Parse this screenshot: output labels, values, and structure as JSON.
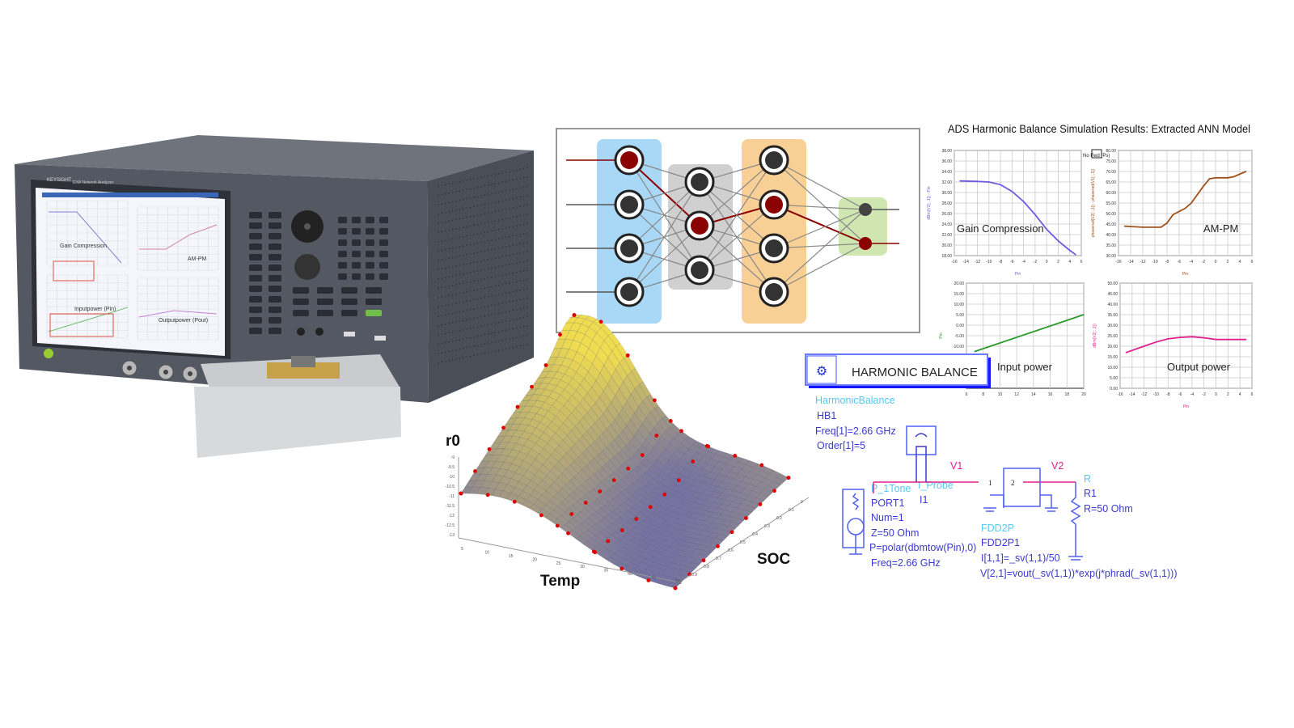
{
  "instrument": {
    "brand": "KEYSIGHT",
    "model": "ENA Network Analyzer",
    "screen_labels": [
      "Gain Compression",
      "AM-PM",
      "Inputpower (Pin)",
      "Outputpower (Pout)"
    ]
  },
  "neural_network": {
    "layers": [
      4,
      3,
      4,
      2
    ],
    "layer_colors": [
      "#a8d8f5",
      "#d0d0d0",
      "#f8cf94",
      "#cfe6b0"
    ],
    "active_node_color": "#8b0000"
  },
  "results": {
    "title": "ADS Harmonic Balance Simulation Results: Extracted ANN Model"
  },
  "chart_data": [
    {
      "type": "line",
      "title": "Gain Compression",
      "xlabel": "Pin",
      "ylabel": "dBm(V2[::,1]) - Pin",
      "xlim": [
        -16,
        6
      ],
      "ylim": [
        18,
        38
      ],
      "xticks": [
        "-16",
        "-14",
        "-12",
        "-10",
        "-8",
        "-6",
        "-4",
        "-2",
        "0",
        "2",
        "4",
        "6"
      ],
      "yticks": [
        "18.00",
        "20.00",
        "22.00",
        "24.00",
        "26.00",
        "28.00",
        "30.00",
        "32.00",
        "34.00",
        "36.00",
        "38.00"
      ],
      "grid": true,
      "color": "#6a5ce0",
      "x": [
        -15,
        -12,
        -10,
        -8,
        -6,
        -4,
        -2,
        0,
        2,
        4,
        5
      ],
      "y": [
        32.2,
        32.1,
        32.0,
        31.5,
        30.2,
        28.3,
        25.8,
        23.0,
        20.8,
        19.0,
        18.2
      ]
    },
    {
      "type": "line",
      "title": "AM-PM",
      "xlabel": "Pin",
      "ylabel": "phaserad(V2[::,1]) - phaserad(V1[::,1])",
      "xlim": [
        -16,
        6
      ],
      "ylim": [
        30,
        80
      ],
      "xticks": [
        "-16",
        "-14",
        "-12",
        "-10",
        "-8",
        "-6",
        "-4",
        "-2",
        "0",
        "2",
        "4",
        "6"
      ],
      "yticks": [
        "30.00",
        "35.00",
        "40.00",
        "45.00",
        "50.00",
        "55.00",
        "60.00",
        "65.00",
        "70.00",
        "75.00",
        "80.00"
      ],
      "grid": true,
      "color": "#a0501a",
      "legend_marker": "No Fwd (Ps)",
      "x": [
        -15,
        -12,
        -9,
        -8,
        -7,
        -5,
        -4,
        -2,
        -1,
        0,
        2,
        3,
        5
      ],
      "y": [
        44,
        43.5,
        43.5,
        45.5,
        49.5,
        52.5,
        55,
        63,
        66.5,
        67,
        67,
        67.5,
        70
      ]
    },
    {
      "type": "line",
      "title": "Input power",
      "xlabel": "",
      "ylabel": "Pin",
      "xlim": [
        6,
        20
      ],
      "ylim": [
        -30,
        20
      ],
      "xticks": [
        "6",
        "8",
        "10",
        "12",
        "14",
        "16",
        "18",
        "20"
      ],
      "yticks": [
        "-10.00",
        "-5.00",
        "0.00",
        "5.00",
        "10.00",
        "15.00",
        "20.00"
      ],
      "grid": true,
      "color": "#2a9a2a",
      "x": [
        7,
        20
      ],
      "y": [
        -12.5,
        5
      ]
    },
    {
      "type": "line",
      "title": "Output power",
      "xlabel": "Pin",
      "ylabel": "dBm(V2[::,1])",
      "xlim": [
        -16,
        6
      ],
      "ylim": [
        0,
        50
      ],
      "xticks": [
        "-16",
        "-14",
        "-12",
        "-10",
        "-8",
        "-6",
        "-4",
        "-2",
        "0",
        "2",
        "4",
        "6"
      ],
      "yticks": [
        "0.00",
        "5.00",
        "10.00",
        "15.00",
        "20.00",
        "25.00",
        "30.00",
        "35.00",
        "40.00",
        "45.00",
        "50.00"
      ],
      "grid": true,
      "color": "#e0208c",
      "x": [
        -15,
        -12,
        -10,
        -8,
        -6,
        -4,
        -2,
        0,
        2,
        5
      ],
      "y": [
        17,
        20,
        22,
        23.5,
        24.2,
        24.5,
        24,
        23.2,
        23.2,
        23.2
      ]
    }
  ],
  "schematic": {
    "banner": "HARMONIC BALANCE",
    "hb": [
      "HarmonicBalance",
      "HB1",
      "Freq[1]=2.66 GHz",
      "Order[1]=5"
    ],
    "source": [
      "P_1Tone",
      "PORT1",
      "Num=1",
      "Z=50 Ohm",
      "P=polar(dbmtow(Pin),0)",
      "Freq=2.66 GHz"
    ],
    "probe": [
      "I_Probe",
      "I1"
    ],
    "fdd": [
      "FDD2P",
      "FDD2P1",
      "I[1,1]=_sv(1,1)/50",
      "V[2,1]=vout(_sv(1,1))*exp(j*phrad(_sv(1,1)))"
    ],
    "resistor": [
      "R",
      "R1",
      "R=50 Ohm"
    ],
    "nodes": [
      "V1",
      "V2"
    ],
    "ports": [
      "1",
      "2"
    ]
  },
  "surface_plot": {
    "zlabel": "r0",
    "xlabel": "Temp",
    "ylabel": "SOC",
    "zticks": [
      "-9",
      "-9.5",
      "-10",
      "-10.5",
      "-11",
      "-11.5",
      "-12",
      "-12.5",
      "-13"
    ],
    "xticks": [
      "5",
      "10",
      "15",
      "20",
      "25",
      "30",
      "35",
      "40",
      "45",
      "50"
    ],
    "yticks": [
      "0",
      "0.1",
      "0.2",
      "0.3",
      "0.4",
      "0.5",
      "0.6",
      "0.7",
      "0.8",
      "0.9",
      "1"
    ],
    "point_color": "#e00000"
  }
}
